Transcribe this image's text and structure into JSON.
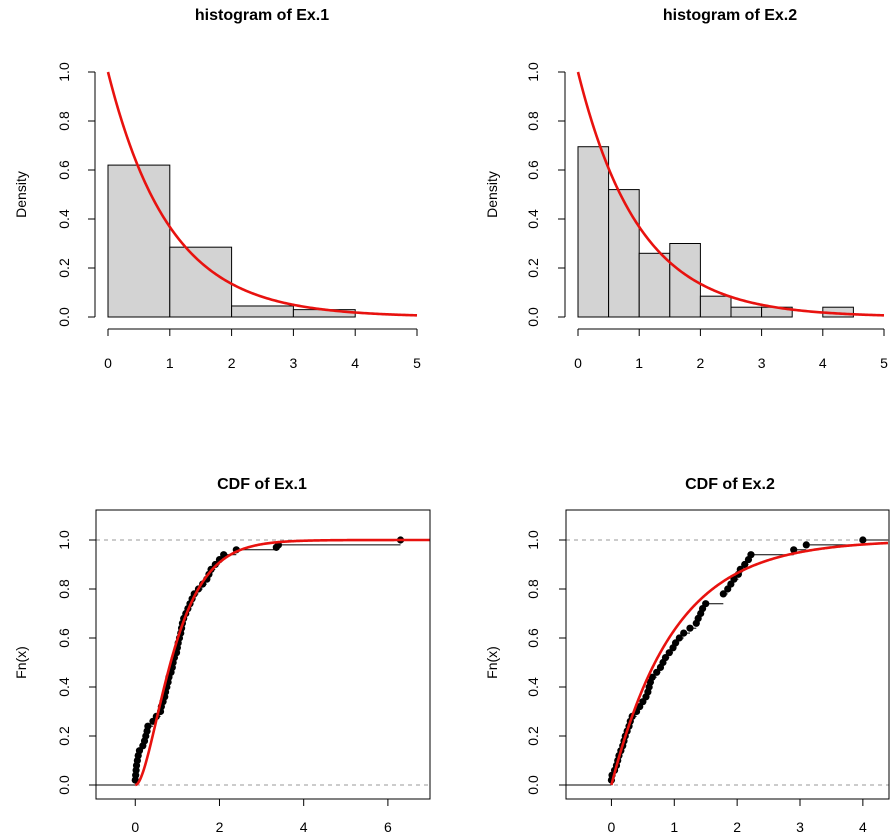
{
  "chart_data": [
    {
      "type": "histogram",
      "title": "histogram of Ex.1",
      "ylabel": "Density",
      "xlim": [
        0,
        5
      ],
      "ylim": [
        0,
        1
      ],
      "x_ticks": [
        0,
        1,
        2,
        3,
        4,
        5
      ],
      "y_ticks": [
        0.0,
        0.2,
        0.4,
        0.6,
        0.8,
        1.0
      ],
      "x_tick_labels": [
        "0",
        "1",
        "2",
        "3",
        "4",
        "5"
      ],
      "y_tick_labels": [
        "0.0",
        "0.2",
        "0.4",
        "0.6",
        "0.8",
        "1.0"
      ],
      "bins": [
        {
          "from": 0,
          "to": 1,
          "density": 0.62
        },
        {
          "from": 1,
          "to": 2,
          "density": 0.285
        },
        {
          "from": 2,
          "to": 3,
          "density": 0.045
        },
        {
          "from": 3,
          "to": 4,
          "density": 0.03
        }
      ],
      "density_curve": {
        "type": "exponential",
        "rate": 1,
        "from": 0,
        "to": 5,
        "color": "#e8120f"
      }
    },
    {
      "type": "histogram",
      "title": "histogram of Ex.2",
      "ylabel": "Density",
      "xlim": [
        0,
        5
      ],
      "ylim": [
        0,
        1
      ],
      "x_ticks": [
        0,
        1,
        2,
        3,
        4,
        5
      ],
      "y_ticks": [
        0.0,
        0.2,
        0.4,
        0.6,
        0.8,
        1.0
      ],
      "x_tick_labels": [
        "0",
        "1",
        "2",
        "3",
        "4",
        "5"
      ],
      "y_tick_labels": [
        "0.0",
        "0.2",
        "0.4",
        "0.6",
        "0.8",
        "1.0"
      ],
      "bins": [
        {
          "from": 0,
          "to": 0.5,
          "density": 0.695
        },
        {
          "from": 0.5,
          "to": 1,
          "density": 0.52
        },
        {
          "from": 1,
          "to": 1.5,
          "density": 0.26
        },
        {
          "from": 1.5,
          "to": 2,
          "density": 0.3
        },
        {
          "from": 2,
          "to": 2.5,
          "density": 0.085
        },
        {
          "from": 2.5,
          "to": 3,
          "density": 0.04
        },
        {
          "from": 3,
          "to": 3.5,
          "density": 0.04
        },
        {
          "from": 3.5,
          "to": 4,
          "density": 0
        },
        {
          "from": 4,
          "to": 4.5,
          "density": 0.04
        }
      ],
      "density_curve": {
        "type": "exponential",
        "rate": 1,
        "from": 0,
        "to": 5,
        "color": "#e8120f"
      }
    },
    {
      "type": "ecdf",
      "title": "CDF of Ex.1",
      "ylabel": "Fn(x)",
      "xlim": [
        -0.6,
        7
      ],
      "ylim": [
        0,
        1
      ],
      "x_ticks": [
        0,
        2,
        4,
        6
      ],
      "y_ticks": [
        0.0,
        0.2,
        0.4,
        0.6,
        0.8,
        1.0
      ],
      "x_tick_labels": [
        "0",
        "2",
        "4",
        "6"
      ],
      "y_tick_labels": [
        "0.0",
        "0.2",
        "0.4",
        "0.6",
        "0.8",
        "1.0"
      ],
      "reference_lines": [
        0,
        1
      ],
      "points": [
        [
          0.0,
          0.02
        ],
        [
          0.01,
          0.04
        ],
        [
          0.02,
          0.06
        ],
        [
          0.03,
          0.08
        ],
        [
          0.05,
          0.1
        ],
        [
          0.07,
          0.12
        ],
        [
          0.1,
          0.14
        ],
        [
          0.18,
          0.16
        ],
        [
          0.22,
          0.18
        ],
        [
          0.25,
          0.2
        ],
        [
          0.28,
          0.22
        ],
        [
          0.3,
          0.24
        ],
        [
          0.42,
          0.26
        ],
        [
          0.5,
          0.28
        ],
        [
          0.6,
          0.3
        ],
        [
          0.62,
          0.32
        ],
        [
          0.66,
          0.34
        ],
        [
          0.7,
          0.36
        ],
        [
          0.72,
          0.38
        ],
        [
          0.75,
          0.4
        ],
        [
          0.78,
          0.42
        ],
        [
          0.8,
          0.44
        ],
        [
          0.85,
          0.46
        ],
        [
          0.88,
          0.48
        ],
        [
          0.9,
          0.5
        ],
        [
          0.93,
          0.52
        ],
        [
          0.98,
          0.54
        ],
        [
          1.0,
          0.56
        ],
        [
          1.02,
          0.58
        ],
        [
          1.05,
          0.6
        ],
        [
          1.08,
          0.62
        ],
        [
          1.1,
          0.64
        ],
        [
          1.12,
          0.66
        ],
        [
          1.15,
          0.68
        ],
        [
          1.2,
          0.7
        ],
        [
          1.25,
          0.72
        ],
        [
          1.3,
          0.74
        ],
        [
          1.35,
          0.76
        ],
        [
          1.4,
          0.78
        ],
        [
          1.5,
          0.8
        ],
        [
          1.6,
          0.82
        ],
        [
          1.7,
          0.84
        ],
        [
          1.75,
          0.86
        ],
        [
          1.8,
          0.88
        ],
        [
          1.9,
          0.9
        ],
        [
          2.0,
          0.92
        ],
        [
          2.1,
          0.94
        ],
        [
          2.4,
          0.96
        ],
        [
          3.35,
          0.97
        ],
        [
          3.4,
          0.98
        ],
        [
          6.3,
          1.0
        ]
      ],
      "cdf_curve": {
        "type": "gamma",
        "shape": 2,
        "rate": 2,
        "from": 0,
        "to": 7,
        "color": "#e8120f"
      }
    },
    {
      "type": "ecdf",
      "title": "CDF of Ex.2",
      "ylabel": "Fn(x)",
      "xlim": [
        -0.5,
        4.4
      ],
      "ylim": [
        0,
        1
      ],
      "x_ticks": [
        0,
        1,
        2,
        3,
        4
      ],
      "y_ticks": [
        0.0,
        0.2,
        0.4,
        0.6,
        0.8,
        1.0
      ],
      "x_tick_labels": [
        "0",
        "1",
        "2",
        "3",
        "4"
      ],
      "y_tick_labels": [
        "0.0",
        "0.2",
        "0.4",
        "0.6",
        "0.8",
        "1.0"
      ],
      "reference_lines": [
        0,
        1
      ],
      "points": [
        [
          0.0,
          0.02
        ],
        [
          0.01,
          0.04
        ],
        [
          0.05,
          0.06
        ],
        [
          0.08,
          0.08
        ],
        [
          0.1,
          0.1
        ],
        [
          0.12,
          0.12
        ],
        [
          0.15,
          0.14
        ],
        [
          0.18,
          0.16
        ],
        [
          0.2,
          0.18
        ],
        [
          0.22,
          0.2
        ],
        [
          0.25,
          0.22
        ],
        [
          0.28,
          0.24
        ],
        [
          0.3,
          0.26
        ],
        [
          0.33,
          0.28
        ],
        [
          0.4,
          0.3
        ],
        [
          0.45,
          0.32
        ],
        [
          0.5,
          0.34
        ],
        [
          0.55,
          0.36
        ],
        [
          0.58,
          0.38
        ],
        [
          0.6,
          0.4
        ],
        [
          0.62,
          0.42
        ],
        [
          0.65,
          0.44
        ],
        [
          0.72,
          0.46
        ],
        [
          0.78,
          0.48
        ],
        [
          0.82,
          0.5
        ],
        [
          0.86,
          0.52
        ],
        [
          0.92,
          0.54
        ],
        [
          0.98,
          0.56
        ],
        [
          1.02,
          0.58
        ],
        [
          1.08,
          0.6
        ],
        [
          1.15,
          0.62
        ],
        [
          1.25,
          0.64
        ],
        [
          1.35,
          0.66
        ],
        [
          1.38,
          0.68
        ],
        [
          1.42,
          0.7
        ],
        [
          1.45,
          0.72
        ],
        [
          1.5,
          0.74
        ],
        [
          1.78,
          0.78
        ],
        [
          1.85,
          0.8
        ],
        [
          1.9,
          0.82
        ],
        [
          1.95,
          0.84
        ],
        [
          2.02,
          0.86
        ],
        [
          2.05,
          0.88
        ],
        [
          2.12,
          0.9
        ],
        [
          2.18,
          0.92
        ],
        [
          2.22,
          0.94
        ],
        [
          2.9,
          0.96
        ],
        [
          3.1,
          0.98
        ],
        [
          4.0,
          1.0
        ]
      ],
      "cdf_curve": {
        "type": "exponential",
        "rate": 1,
        "from": 0,
        "to": 4.4,
        "color": "#e8120f"
      }
    }
  ]
}
